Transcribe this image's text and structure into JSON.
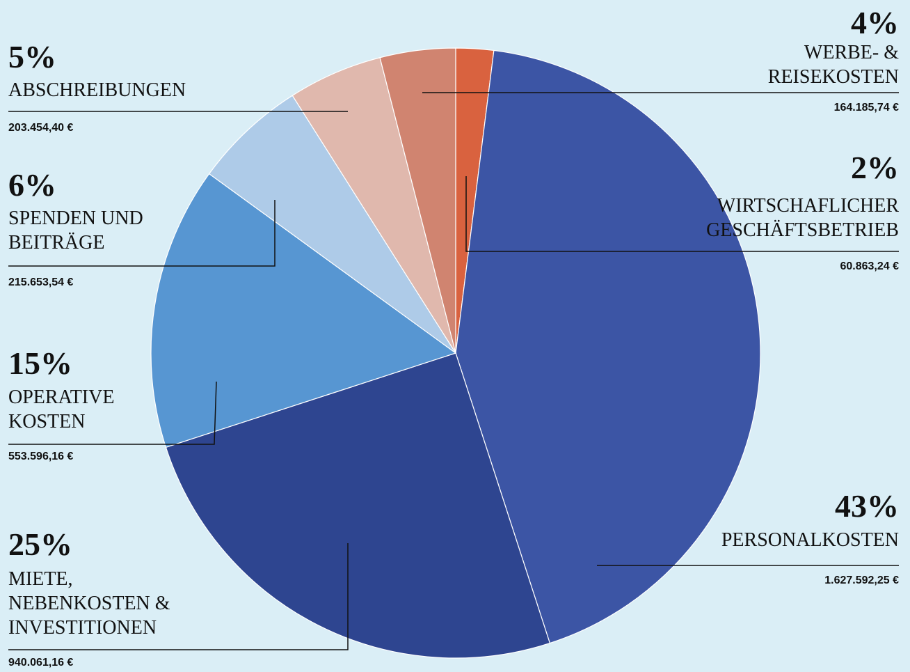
{
  "chart_data": {
    "type": "pie",
    "categories": [
      "WIRTSCHAFLICHER\nGESCHÄFTSBETRIEB",
      "PERSONALKOSTEN",
      "MIETE,\nNEBENKOSTEN &\nINVESTITIONEN",
      "OPERATIVE\nKOSTEN",
      "SPENDEN UND\nBEITRÄGE",
      "ABSCHREIBUNGEN",
      "WERBE- &\nREISEKOSTEN"
    ],
    "values": [
      2,
      43,
      25,
      15,
      6,
      5,
      4
    ],
    "value_labels": [
      "2%",
      "43%",
      "25%",
      "15%",
      "6%",
      "5%",
      "4%"
    ],
    "amounts": [
      "60.863,24 €",
      "1.627.592,25 €",
      "940.061,16 €",
      "553.596,16 €",
      "215.653,54 €",
      "203.454,40 €",
      "164.185,74 €"
    ],
    "colors": [
      "#d9623f",
      "#3c55a5",
      "#2e4590",
      "#5796d2",
      "#aecbe8",
      "#e0b8ad",
      "#d08470"
    ]
  }
}
